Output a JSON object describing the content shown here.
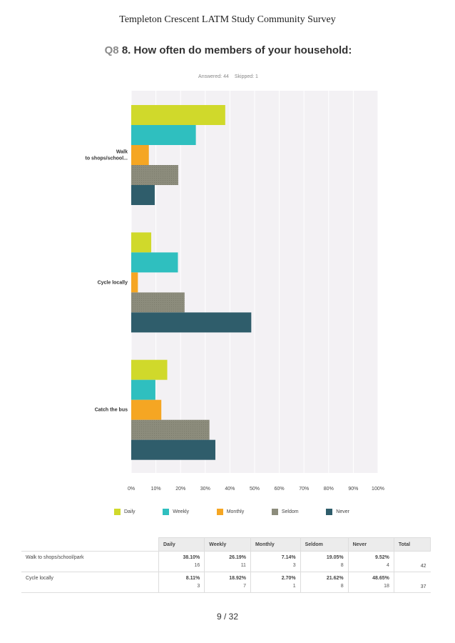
{
  "header": {
    "doc_title": "Templeton Crescent LATM Study Community Survey"
  },
  "question": {
    "number": "Q8",
    "text": "8. How often do members of your household:"
  },
  "stats": {
    "answered": "Answered: 44",
    "skipped": "Skipped: 1"
  },
  "chart_data": {
    "type": "bar",
    "orientation": "horizontal",
    "categories": [
      "Walk to shops/school...",
      "Cycle locally",
      "Catch the bus"
    ],
    "series": [
      {
        "name": "Daily",
        "color": "#d0d92b",
        "values": [
          38.1,
          8.11,
          14.6
        ]
      },
      {
        "name": "Weekly",
        "color": "#2fbfbf",
        "values": [
          26.19,
          18.92,
          9.8
        ]
      },
      {
        "name": "Monthly",
        "color": "#f5a623",
        "values": [
          7.14,
          2.7,
          12.2
        ]
      },
      {
        "name": "Seldom",
        "color": "#8c8c7c",
        "values": [
          19.05,
          21.62,
          31.7
        ]
      },
      {
        "name": "Never",
        "color": "#2f5d6b",
        "values": [
          9.52,
          48.65,
          34.1
        ]
      }
    ],
    "xlim": [
      0,
      100
    ],
    "xticks": [
      "0%",
      "10%",
      "20%",
      "30%",
      "40%",
      "50%",
      "60%",
      "70%",
      "80%",
      "90%",
      "100%"
    ],
    "grid": true,
    "legend_position": "bottom"
  },
  "table": {
    "headers": [
      "Daily",
      "Weekly",
      "Monthly",
      "Seldom",
      "Never",
      "Total"
    ],
    "rows": [
      {
        "label": "Walk to shops/school/park",
        "cells": [
          {
            "pct": "38.10%",
            "count": "16"
          },
          {
            "pct": "26.19%",
            "count": "11"
          },
          {
            "pct": "7.14%",
            "count": "3"
          },
          {
            "pct": "19.05%",
            "count": "8"
          },
          {
            "pct": "9.52%",
            "count": "4"
          }
        ],
        "total": "42"
      },
      {
        "label": "Cycle locally",
        "cells": [
          {
            "pct": "8.11%",
            "count": "3"
          },
          {
            "pct": "18.92%",
            "count": "7"
          },
          {
            "pct": "2.70%",
            "count": "1"
          },
          {
            "pct": "21.62%",
            "count": "8"
          },
          {
            "pct": "48.65%",
            "count": "18"
          }
        ],
        "total": "37"
      }
    ]
  },
  "footer": {
    "page": "9 / 32"
  }
}
